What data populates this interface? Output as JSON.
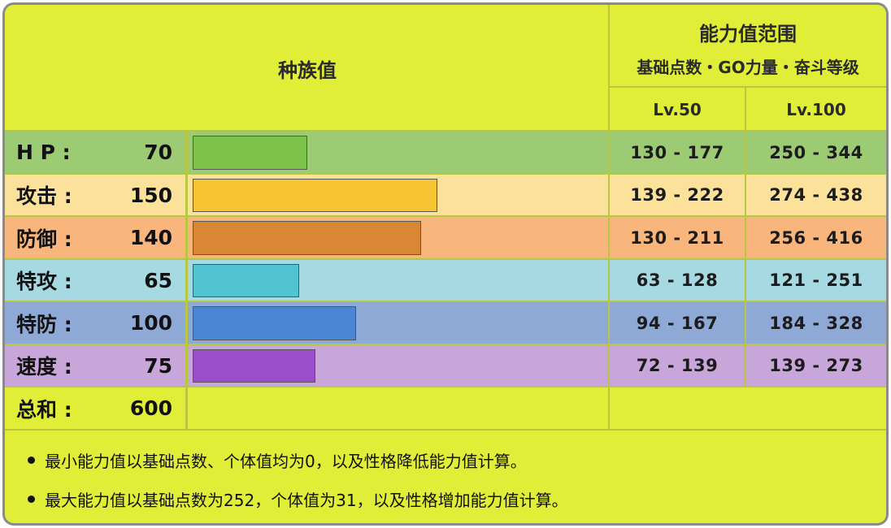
{
  "header": {
    "base_stats": "种族值",
    "stat_range": "能力值范围",
    "stat_range_sub": "基础点数・GO力量・奋斗等级",
    "lv50": "Lv.50",
    "lv100": "Lv.100"
  },
  "rows": [
    {
      "label": "H P :",
      "value": "70",
      "bar_value": 70,
      "bar_max": 255,
      "lv50": "130 - 177",
      "lv100": "250 - 344",
      "cell_color": "#9ccb74",
      "bar_color": "#7cc24a",
      "range_color": "#9ccb74"
    },
    {
      "label": "攻击 :",
      "value": "150",
      "bar_value": 150,
      "bar_max": 255,
      "lv50": "139 - 222",
      "lv100": "274 - 438",
      "cell_color": "#fbe19a",
      "bar_color": "#f7c531",
      "range_color": "#fbe19a"
    },
    {
      "label": "防御 :",
      "value": "140",
      "bar_value": 140,
      "bar_max": 255,
      "lv50": "130 - 211",
      "lv100": "256 - 416",
      "cell_color": "#f8b57c",
      "bar_color": "#d98635",
      "range_color": "#f8b57c"
    },
    {
      "label": "特攻 :",
      "value": "65",
      "bar_value": 65,
      "bar_max": 255,
      "lv50": "63 - 128",
      "lv100": "121 - 251",
      "cell_color": "#a6d9e2",
      "bar_color": "#52c3d3",
      "range_color": "#a6d9e2"
    },
    {
      "label": "特防 :",
      "value": "100",
      "bar_value": 100,
      "bar_max": 255,
      "lv50": "94 - 167",
      "lv100": "184 - 328",
      "cell_color": "#8fa9d6",
      "bar_color": "#4a86d2",
      "range_color": "#8fa9d6"
    },
    {
      "label": "速度 :",
      "value": "75",
      "bar_value": 75,
      "bar_max": 255,
      "lv50": "72 - 139",
      "lv100": "139 - 273",
      "cell_color": "#c8a6da",
      "bar_color": "#9b4dca",
      "range_color": "#c8a6da"
    }
  ],
  "total": {
    "label": "总和 :",
    "value": "600"
  },
  "notes": [
    "最小能力值以基础点数、个体值均为0，以及性格降低能力值计算。",
    "最大能力值以基础点数为252，个体值为31，以及性格增加能力值计算。"
  ]
}
